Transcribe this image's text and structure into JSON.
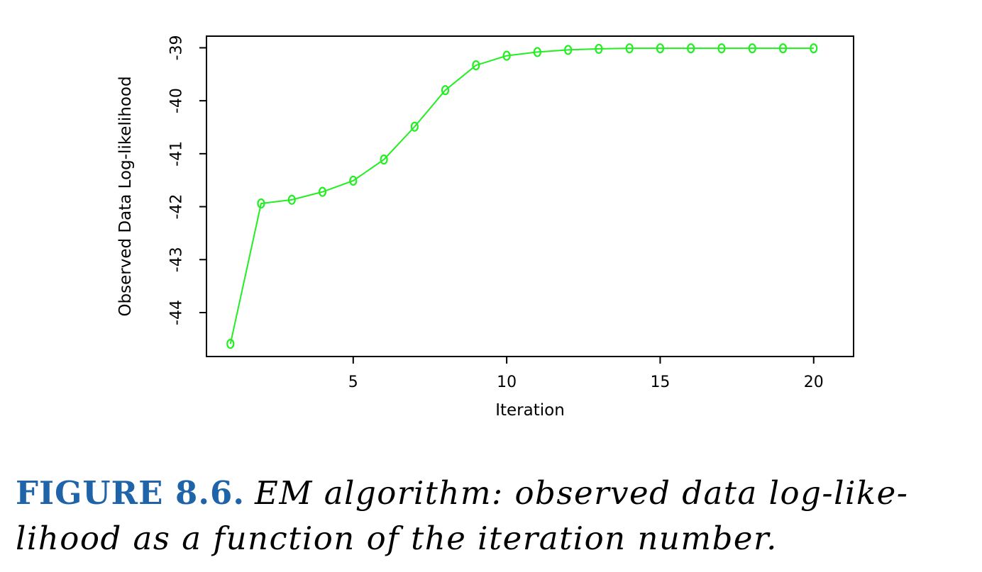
{
  "chart_data": {
    "type": "line",
    "title": "",
    "xlabel": "Iteration",
    "ylabel": "Observed Data Log-likelihood",
    "x": [
      1,
      2,
      3,
      4,
      5,
      6,
      7,
      8,
      9,
      10,
      11,
      12,
      13,
      14,
      15,
      16,
      17,
      18,
      19,
      20
    ],
    "series": [
      {
        "values": [
          -44.59,
          -41.94,
          -41.87,
          -41.72,
          -41.51,
          -41.11,
          -40.49,
          -39.8,
          -39.33,
          -39.15,
          -39.08,
          -39.04,
          -39.02,
          -39.01,
          -39.01,
          -39.01,
          -39.01,
          -39.01,
          -39.01,
          -39.01
        ],
        "color": "#22ee22",
        "marker": "circle-open"
      }
    ],
    "xlim": [
      0.22,
      21.3
    ],
    "ylim": [
      -44.83,
      -38.78
    ],
    "xticks": [
      5,
      10,
      15,
      20
    ],
    "yticks": [
      -44,
      -43,
      -42,
      -41,
      -40,
      -39
    ],
    "grid": false,
    "legend": "none"
  },
  "caption": {
    "label": "FIGURE 8.6.",
    "text_line1": "EM algorithm: observed data log-like-",
    "text_line2": "lihood as a function of the iteration number."
  }
}
